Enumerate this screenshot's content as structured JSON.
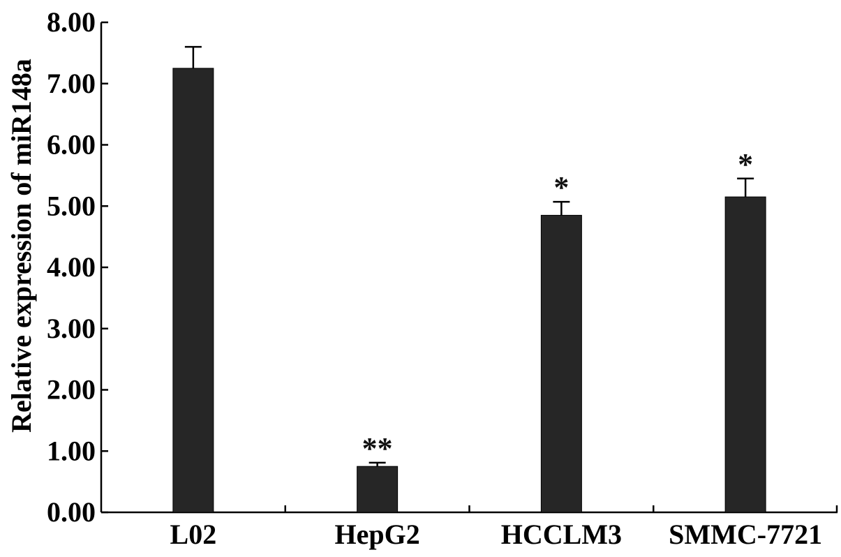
{
  "chart_data": {
    "type": "bar",
    "categories": [
      "L02",
      "HepG2",
      "HCCLM3",
      "SMMC-7721"
    ],
    "values": [
      7.25,
      0.75,
      4.85,
      5.15
    ],
    "errors": [
      0.35,
      0.06,
      0.22,
      0.3
    ],
    "significance": [
      "",
      "**",
      "*",
      "*"
    ],
    "title": "",
    "xlabel": "",
    "ylabel": "Relative expression of miR148a",
    "ylim": [
      0,
      8
    ],
    "yticks": [
      0,
      1,
      2,
      3,
      4,
      5,
      6,
      7,
      8
    ],
    "ytick_labels": [
      "0.00",
      "1.00",
      "2.00",
      "3.00",
      "4.00",
      "5.00",
      "6.00",
      "7.00",
      "8.00"
    ],
    "grid": false,
    "bar_color": "#262626"
  }
}
